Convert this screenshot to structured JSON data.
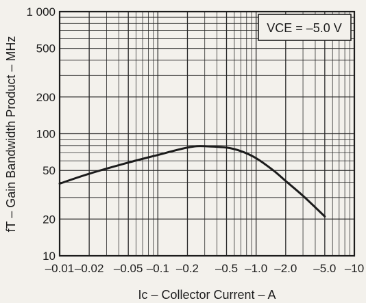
{
  "chart_data": {
    "type": "line",
    "xlabel": "Ic – Collector Current – A",
    "ylabel": "fT – Gain Bandwidth Product – MHz",
    "annotation": "VCE = –5.0 V",
    "x_scale": "log",
    "y_scale": "log",
    "x_tick_labels": [
      "–0.01",
      "–0.02",
      "–0.05",
      "–0.1",
      "–0.2",
      "–0.5",
      "–1.0",
      "–2.0",
      "–5.0",
      "–10"
    ],
    "x_tick_values": [
      0.01,
      0.02,
      0.05,
      0.1,
      0.2,
      0.5,
      1.0,
      2.0,
      5.0,
      10
    ],
    "y_tick_labels": [
      "10",
      "20",
      "50",
      "100",
      "200",
      "500",
      "1 000"
    ],
    "y_tick_values": [
      10,
      20,
      50,
      100,
      200,
      500,
      1000
    ],
    "xlim": [
      0.01,
      10
    ],
    "ylim": [
      10,
      1000
    ],
    "grid": true,
    "series": [
      {
        "x": [
          0.01,
          0.02,
          0.05,
          0.1,
          0.15,
          0.2,
          0.25,
          0.3,
          0.5,
          0.7,
          1.0,
          1.5,
          2.0,
          3.0,
          5.0
        ],
        "y": [
          39,
          47,
          58,
          67,
          73,
          77,
          79,
          79,
          77,
          72,
          63,
          50,
          41,
          31,
          21
        ]
      }
    ],
    "colors": {
      "background": "#f3f1ec",
      "line": "#1c1c1c",
      "grid": "#2a2a2a"
    }
  }
}
